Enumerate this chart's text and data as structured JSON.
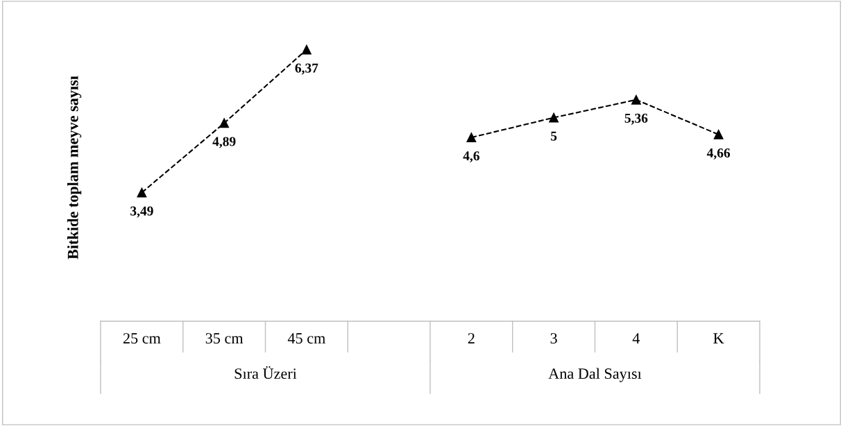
{
  "chart_data": {
    "type": "line",
    "ylabel": "Bitkide toplam meyve sayısı",
    "categories": [
      "25 cm",
      "35 cm",
      "45 cm",
      null,
      "2",
      "3",
      "4",
      "K"
    ],
    "series": [
      {
        "color": "#000000",
        "values": [
          3.49,
          4.89,
          6.37,
          null,
          null,
          null,
          null,
          null
        ],
        "value_labels": [
          "3,49",
          "4,89",
          "6,37",
          null,
          null,
          null,
          null,
          null
        ]
      },
      {
        "color": "#000000",
        "values": [
          null,
          null,
          null,
          null,
          4.6,
          5,
          5.36,
          4.66
        ],
        "value_labels": [
          null,
          null,
          null,
          null,
          "4,6",
          "5",
          "5,36",
          "4,66"
        ]
      }
    ],
    "annotations": [
      "Sıra Üzeri",
      "Ana Dal Sayısı"
    ],
    "tick_labels": "x",
    "marker": "triangle",
    "line_style": "dashed"
  }
}
